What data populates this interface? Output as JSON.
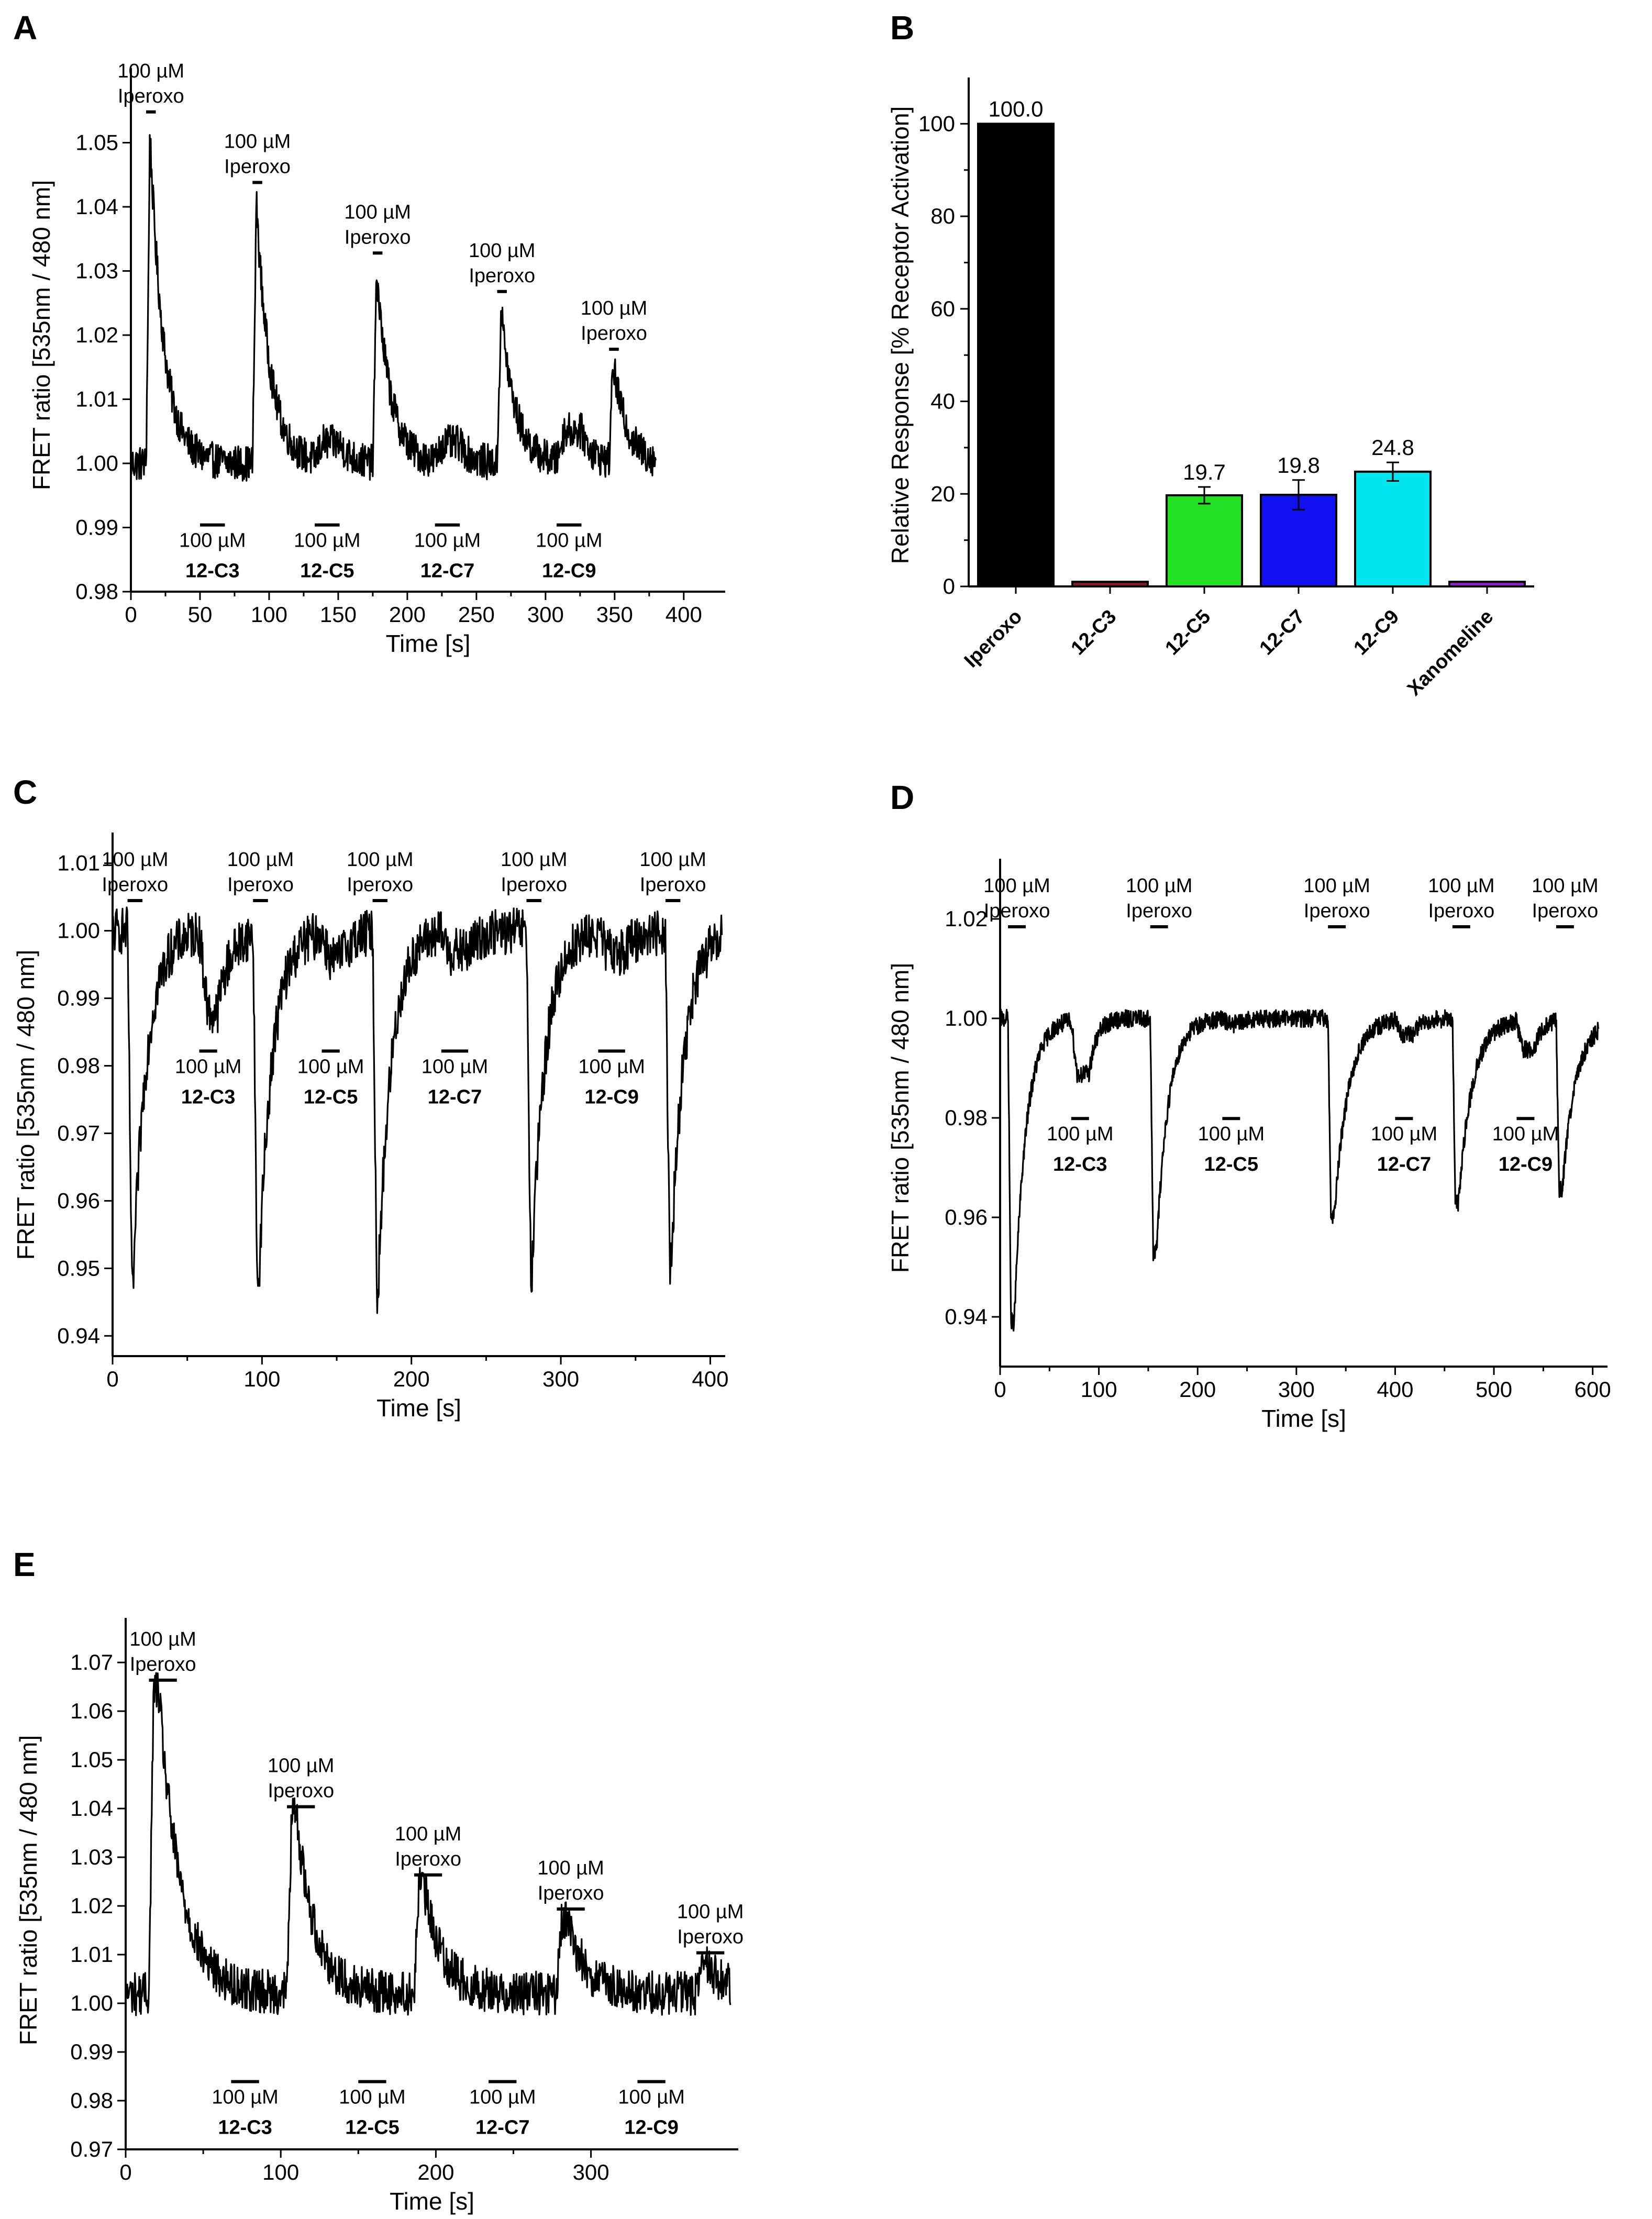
{
  "chart_data": [
    {
      "panel": "A",
      "type": "line",
      "xlabel": "Time [s]",
      "ylabel": "FRET ratio [535nm / 480 nm]",
      "xlim": [
        0,
        430
      ],
      "ylim": [
        0.98,
        1.06
      ],
      "xticks": [
        0,
        50,
        100,
        150,
        200,
        250,
        300,
        350,
        400
      ],
      "yticks": [
        "0.98",
        "0.99",
        "1.00",
        "1.01",
        "1.02",
        "1.03",
        "1.04",
        "1.05"
      ],
      "baseline": 1.0,
      "noise": 0.0028,
      "end_time": 380,
      "iperoxo_events": [
        {
          "t": 11,
          "dur": 7,
          "peak": 1.053,
          "tau": 10,
          "label": "100 µM Iperoxo"
        },
        {
          "t": 88,
          "dur": 7,
          "peak": 1.042,
          "tau": 10,
          "label": "100 µM Iperoxo"
        },
        {
          "t": 175,
          "dur": 7,
          "peak": 1.031,
          "tau": 10,
          "label": "100 µM Iperoxo"
        },
        {
          "t": 265,
          "dur": 7,
          "peak": 1.025,
          "tau": 10,
          "label": "100 µM Iperoxo"
        },
        {
          "t": 346,
          "dur": 7,
          "peak": 1.016,
          "tau": 10,
          "label": "100 µM Iperoxo"
        }
      ],
      "compound_events": [
        {
          "t": 50,
          "dur": 18,
          "amp": 0.0,
          "dose": "100 µM",
          "name": "12-C3"
        },
        {
          "t": 133,
          "dur": 18,
          "amp": 0.003,
          "dose": "100 µM",
          "name": "12-C5"
        },
        {
          "t": 220,
          "dur": 18,
          "amp": 0.003,
          "dose": "100 µM",
          "name": "12-C7"
        },
        {
          "t": 308,
          "dur": 18,
          "amp": 0.005,
          "dose": "100 µM",
          "name": "12-C9"
        }
      ]
    },
    {
      "panel": "B",
      "type": "bar",
      "ylabel": "Relative Response [% Receptor Activation]",
      "ylim": [
        0,
        110
      ],
      "yticks": [
        0,
        20,
        40,
        60,
        80,
        100
      ],
      "categories": [
        "Iperoxo",
        "12-C3",
        "12-C5",
        "12-C7",
        "12-C9",
        "Xanomeline"
      ],
      "values": [
        100.0,
        1.0,
        19.7,
        19.8,
        24.8,
        1.0
      ],
      "errors": [
        0,
        0,
        1.8,
        3.2,
        2.0,
        0
      ],
      "value_labels": [
        "100.0",
        "",
        "19.7",
        "19.8",
        "24.8",
        ""
      ],
      "colors": [
        "#000000",
        "#8b1a1a",
        "#22e022",
        "#1010f0",
        "#00e5ee",
        "#9a1acd"
      ]
    },
    {
      "panel": "C",
      "type": "line",
      "xlabel": "Time [s]",
      "ylabel": "FRET ratio [535nm / 480 nm]",
      "xlim": [
        0,
        410
      ],
      "ylim": [
        0.937,
        1.013
      ],
      "xticks": [
        0,
        100,
        200,
        300,
        400
      ],
      "yticks": [
        "0.94",
        "0.95",
        "0.96",
        "0.97",
        "0.98",
        "0.99",
        "1.00",
        "1.01"
      ],
      "baseline": 1.0,
      "noise": 0.0035,
      "end_time": 408,
      "iperoxo_events": [
        {
          "t": 10,
          "dur": 10,
          "peak": 0.946,
          "tau": 9,
          "label": "100 µM Iperoxo"
        },
        {
          "t": 94,
          "dur": 10,
          "peak": 0.946,
          "tau": 9,
          "label": "100 µM Iperoxo"
        },
        {
          "t": 174,
          "dur": 10,
          "peak": 0.946,
          "tau": 9,
          "label": "100 µM Iperoxo"
        },
        {
          "t": 277,
          "dur": 10,
          "peak": 0.948,
          "tau": 9,
          "label": "100 µM Iperoxo"
        },
        {
          "t": 370,
          "dur": 10,
          "peak": 0.949,
          "tau": 9,
          "label": "100 µM Iperoxo"
        }
      ],
      "compound_events": [
        {
          "t": 58,
          "dur": 12,
          "amp": -0.012,
          "dose": "100 µM",
          "name": "12-C3"
        },
        {
          "t": 140,
          "dur": 12,
          "amp": -0.004,
          "dose": "100 µM",
          "name": "12-C5"
        },
        {
          "t": 220,
          "dur": 18,
          "amp": -0.003,
          "dose": "100 µM",
          "name": "12-C7"
        },
        {
          "t": 325,
          "dur": 18,
          "amp": -0.003,
          "dose": "100 µM",
          "name": "12-C9"
        }
      ]
    },
    {
      "panel": "D",
      "type": "line",
      "xlabel": "Time [s]",
      "ylabel": "FRET ratio [535nm / 480 nm]",
      "xlim": [
        0,
        615
      ],
      "ylim": [
        0.93,
        1.03
      ],
      "xticks": [
        0,
        100,
        200,
        300,
        400,
        500,
        600
      ],
      "yticks": [
        "0.94",
        "0.96",
        "0.98",
        "1.00",
        "1.02"
      ],
      "baseline": 1.0,
      "noise": 0.0018,
      "end_time": 606,
      "iperoxo_events": [
        {
          "t": 8,
          "dur": 18,
          "peak": 0.939,
          "tau": 12,
          "label": "100 µM Iperoxo"
        },
        {
          "t": 152,
          "dur": 18,
          "peak": 0.953,
          "tau": 12,
          "label": "100 µM Iperoxo"
        },
        {
          "t": 332,
          "dur": 18,
          "peak": 0.96,
          "tau": 14,
          "label": "100 µM Iperoxo"
        },
        {
          "t": 458,
          "dur": 18,
          "peak": 0.963,
          "tau": 14,
          "label": "100 µM Iperoxo"
        },
        {
          "t": 563,
          "dur": 18,
          "peak": 0.966,
          "tau": 14,
          "label": "100 µM Iperoxo"
        }
      ],
      "compound_events": [
        {
          "t": 72,
          "dur": 18,
          "amp": -0.011,
          "dose": "100 µM",
          "name": "12-C3"
        },
        {
          "t": 225,
          "dur": 18,
          "amp": -0.001,
          "dose": "100 µM",
          "name": "12-C5"
        },
        {
          "t": 400,
          "dur": 18,
          "amp": -0.003,
          "dose": "100 µM",
          "name": "12-C7"
        },
        {
          "t": 523,
          "dur": 18,
          "amp": -0.006,
          "dose": "100 µM",
          "name": "12-C9"
        }
      ]
    },
    {
      "panel": "E",
      "type": "line",
      "xlabel": "Time [s]",
      "ylabel": "FRET ratio [535nm / 480 nm]",
      "xlim": [
        0,
        395
      ],
      "ylim": [
        0.97,
        1.077
      ],
      "xticks": [
        0,
        100,
        200,
        300
      ],
      "yticks": [
        "0.97",
        "0.98",
        "0.99",
        "1.00",
        "1.01",
        "1.02",
        "1.03",
        "1.04",
        "1.05",
        "1.06",
        "1.07"
      ],
      "baseline": 1.002,
      "noise": 0.0045,
      "end_time": 390,
      "iperoxo_events": [
        {
          "t": 15,
          "dur": 18,
          "peak": 1.064,
          "tau": 14,
          "label": "100 µM Iperoxo"
        },
        {
          "t": 104,
          "dur": 18,
          "peak": 1.038,
          "tau": 12,
          "label": "100 µM Iperoxo"
        },
        {
          "t": 186,
          "dur": 18,
          "peak": 1.024,
          "tau": 12,
          "label": "100 µM Iperoxo"
        },
        {
          "t": 278,
          "dur": 18,
          "peak": 1.017,
          "tau": 12,
          "label": "100 µM Iperoxo"
        },
        {
          "t": 368,
          "dur": 18,
          "peak": 1.008,
          "tau": 12,
          "label": "100 µM Iperoxo"
        }
      ],
      "compound_events": [
        {
          "t": 68,
          "dur": 18,
          "amp": 0.0,
          "dose": "100 µM",
          "name": "12-C3"
        },
        {
          "t": 150,
          "dur": 18,
          "amp": 0.0,
          "dose": "100 µM",
          "name": "12-C5"
        },
        {
          "t": 234,
          "dur": 18,
          "amp": 0.0,
          "dose": "100 µM",
          "name": "12-C7"
        },
        {
          "t": 330,
          "dur": 18,
          "amp": 0.0,
          "dose": "100 µM",
          "name": "12-C9"
        }
      ]
    }
  ]
}
